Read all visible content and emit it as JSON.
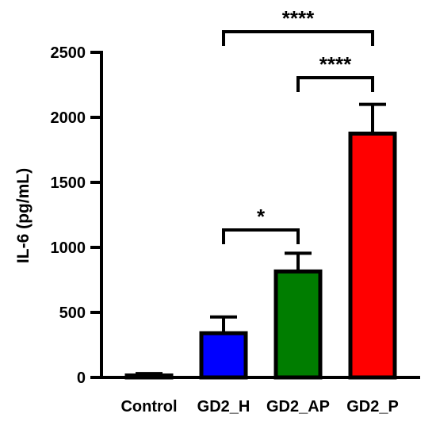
{
  "chart_data": {
    "type": "bar",
    "title": "",
    "xlabel": "",
    "ylabel": "IL-6 (pg/mL)",
    "ylim": [
      0,
      2500
    ],
    "yticks": [
      0,
      500,
      1000,
      1500,
      2000,
      2500
    ],
    "grid": false,
    "categories": [
      "Control",
      "GD2_H",
      "GD2_AP",
      "GD2_P"
    ],
    "values": [
      15,
      340,
      815,
      1875
    ],
    "errors": [
      15,
      125,
      140,
      225
    ],
    "colors": [
      "#000000",
      "#0000ff",
      "#007d00",
      "#ff0000"
    ],
    "significance": [
      {
        "from": "GD2_H",
        "to": "GD2_AP",
        "label": "*"
      },
      {
        "from": "GD2_AP",
        "to": "GD2_P",
        "label": "****"
      },
      {
        "from": "GD2_H",
        "to": "GD2_P",
        "label": "****"
      }
    ]
  }
}
